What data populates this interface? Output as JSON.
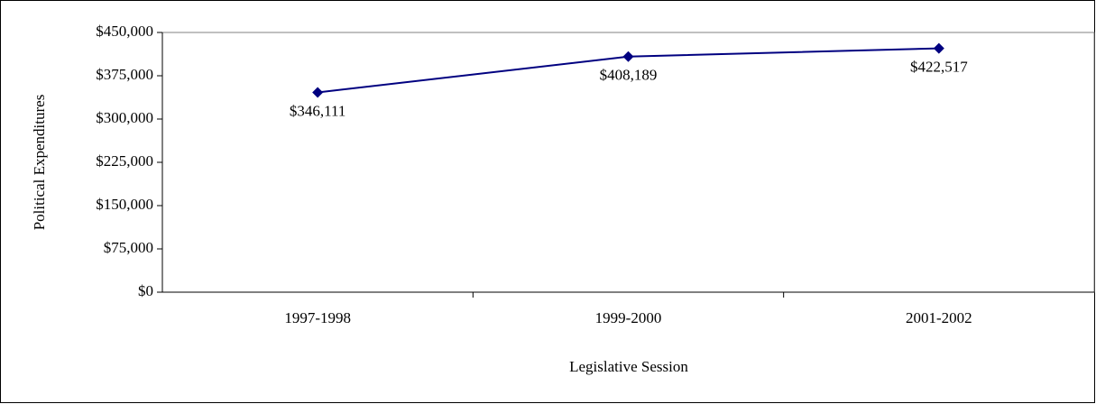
{
  "chart_data": {
    "type": "line",
    "x_label": "Legislative Session",
    "y_label": "Political Expenditures",
    "categories": [
      "1997-1998",
      "1999-2000",
      "2001-2002"
    ],
    "series": [
      {
        "name": "Political Expenditures",
        "color": "#000080",
        "values": [
          346111,
          408189,
          422517
        ],
        "value_labels": [
          "$346,111",
          "$408,189",
          "$422,517"
        ]
      }
    ],
    "ylim": [
      0,
      450000
    ],
    "yticks": [
      {
        "value": 0,
        "label": "$0"
      },
      {
        "value": 75000,
        "label": "$75,000"
      },
      {
        "value": 150000,
        "label": "$150,000"
      },
      {
        "value": 225000,
        "label": "$225,000"
      },
      {
        "value": 300000,
        "label": "$300,000"
      },
      {
        "value": 375000,
        "label": "$375,000"
      },
      {
        "value": 450000,
        "label": "$450,000"
      }
    ],
    "grid": false
  }
}
